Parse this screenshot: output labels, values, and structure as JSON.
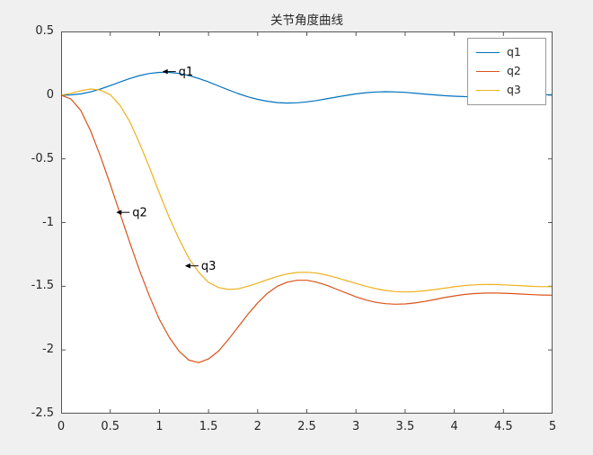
{
  "figure": {
    "background": "#f0f0f0"
  },
  "chart_data": {
    "type": "line",
    "title": "关节角度曲线",
    "xlabel": "",
    "ylabel": "",
    "xlim": [
      0,
      5
    ],
    "ylim": [
      -2.5,
      0.5
    ],
    "xticks": [
      0,
      0.5,
      1,
      1.5,
      2,
      2.5,
      3,
      3.5,
      4,
      4.5,
      5
    ],
    "yticks": [
      0.5,
      0,
      -0.5,
      -1,
      -1.5,
      -2,
      -2.5
    ],
    "grid": false,
    "plot_bg": "#ffffff",
    "axis_color": "#555555",
    "text_color": "#262626",
    "legend": {
      "position": "top-right",
      "entries": [
        "q1",
        "q2",
        "q3"
      ]
    },
    "series": [
      {
        "name": "q1",
        "color": "#0072BD",
        "points": [
          [
            0,
            0
          ],
          [
            0.1,
            0.002
          ],
          [
            0.2,
            0.01
          ],
          [
            0.3,
            0.026
          ],
          [
            0.4,
            0.048
          ],
          [
            0.5,
            0.075
          ],
          [
            0.6,
            0.103
          ],
          [
            0.7,
            0.131
          ],
          [
            0.8,
            0.154
          ],
          [
            0.9,
            0.17
          ],
          [
            1,
            0.179
          ],
          [
            1.1,
            0.179
          ],
          [
            1.2,
            0.17
          ],
          [
            1.3,
            0.154
          ],
          [
            1.4,
            0.131
          ],
          [
            1.5,
            0.104
          ],
          [
            1.6,
            0.073
          ],
          [
            1.7,
            0.042
          ],
          [
            1.8,
            0.013
          ],
          [
            1.9,
            -0.013
          ],
          [
            2,
            -0.033
          ],
          [
            2.1,
            -0.048
          ],
          [
            2.2,
            -0.058
          ],
          [
            2.3,
            -0.062
          ],
          [
            2.4,
            -0.06
          ],
          [
            2.5,
            -0.053
          ],
          [
            2.6,
            -0.042
          ],
          [
            2.7,
            -0.029
          ],
          [
            2.8,
            -0.015
          ],
          [
            2.9,
            -0.002
          ],
          [
            3,
            0.01
          ],
          [
            3.1,
            0.019
          ],
          [
            3.2,
            0.025
          ],
          [
            3.3,
            0.027
          ],
          [
            3.4,
            0.026
          ],
          [
            3.5,
            0.022
          ],
          [
            3.6,
            0.016
          ],
          [
            3.7,
            0.009
          ],
          [
            3.8,
            0.002
          ],
          [
            3.9,
            -0.004
          ],
          [
            4,
            -0.008
          ],
          [
            4.1,
            -0.011
          ],
          [
            4.2,
            -0.012
          ],
          [
            4.3,
            -0.011
          ],
          [
            4.4,
            -0.008
          ],
          [
            4.5,
            -0.005
          ],
          [
            4.6,
            -0.002
          ],
          [
            4.7,
            0.001
          ],
          [
            4.8,
            0.003
          ],
          [
            4.9,
            0.004
          ],
          [
            5,
            0.003
          ]
        ]
      },
      {
        "name": "q2",
        "color": "#D95319",
        "points": [
          [
            0,
            0
          ],
          [
            0.1,
            -0.03
          ],
          [
            0.2,
            -0.12
          ],
          [
            0.3,
            -0.28
          ],
          [
            0.4,
            -0.48
          ],
          [
            0.5,
            -0.7
          ],
          [
            0.6,
            -0.93
          ],
          [
            0.7,
            -1.16
          ],
          [
            0.8,
            -1.38
          ],
          [
            0.9,
            -1.58
          ],
          [
            1,
            -1.76
          ],
          [
            1.1,
            -1.9
          ],
          [
            1.2,
            -2.01
          ],
          [
            1.3,
            -2.08
          ],
          [
            1.4,
            -2.1
          ],
          [
            1.5,
            -2.07
          ],
          [
            1.6,
            -2.01
          ],
          [
            1.7,
            -1.92
          ],
          [
            1.8,
            -1.82
          ],
          [
            1.9,
            -1.72
          ],
          [
            2,
            -1.63
          ],
          [
            2.1,
            -1.555
          ],
          [
            2.2,
            -1.5
          ],
          [
            2.3,
            -1.468
          ],
          [
            2.4,
            -1.453
          ],
          [
            2.5,
            -1.453
          ],
          [
            2.6,
            -1.468
          ],
          [
            2.7,
            -1.492
          ],
          [
            2.8,
            -1.522
          ],
          [
            2.9,
            -1.553
          ],
          [
            3,
            -1.583
          ],
          [
            3.1,
            -1.608
          ],
          [
            3.2,
            -1.626
          ],
          [
            3.3,
            -1.637
          ],
          [
            3.4,
            -1.641
          ],
          [
            3.5,
            -1.639
          ],
          [
            3.6,
            -1.631
          ],
          [
            3.7,
            -1.619
          ],
          [
            3.8,
            -1.604
          ],
          [
            3.9,
            -1.589
          ],
          [
            4,
            -1.576
          ],
          [
            4.1,
            -1.565
          ],
          [
            4.2,
            -1.558
          ],
          [
            4.3,
            -1.554
          ],
          [
            4.4,
            -1.553
          ],
          [
            4.5,
            -1.555
          ],
          [
            4.6,
            -1.558
          ],
          [
            4.7,
            -1.562
          ],
          [
            4.8,
            -1.566
          ],
          [
            4.9,
            -1.569
          ],
          [
            5,
            -1.57
          ]
        ]
      },
      {
        "name": "q3",
        "color": "#EDB120",
        "points": [
          [
            0,
            0
          ],
          [
            0.1,
            0.015
          ],
          [
            0.2,
            0.035
          ],
          [
            0.3,
            0.048
          ],
          [
            0.4,
            0.04
          ],
          [
            0.5,
            0.003
          ],
          [
            0.6,
            -0.08
          ],
          [
            0.7,
            -0.21
          ],
          [
            0.8,
            -0.38
          ],
          [
            0.9,
            -0.57
          ],
          [
            1,
            -0.77
          ],
          [
            1.1,
            -0.96
          ],
          [
            1.2,
            -1.13
          ],
          [
            1.3,
            -1.28
          ],
          [
            1.4,
            -1.39
          ],
          [
            1.5,
            -1.47
          ],
          [
            1.6,
            -1.51
          ],
          [
            1.7,
            -1.525
          ],
          [
            1.8,
            -1.52
          ],
          [
            1.9,
            -1.5
          ],
          [
            2,
            -1.475
          ],
          [
            2.1,
            -1.448
          ],
          [
            2.2,
            -1.423
          ],
          [
            2.3,
            -1.403
          ],
          [
            2.4,
            -1.392
          ],
          [
            2.5,
            -1.39
          ],
          [
            2.6,
            -1.397
          ],
          [
            2.7,
            -1.412
          ],
          [
            2.8,
            -1.432
          ],
          [
            2.9,
            -1.455
          ],
          [
            3,
            -1.478
          ],
          [
            3.1,
            -1.5
          ],
          [
            3.2,
            -1.519
          ],
          [
            3.3,
            -1.533
          ],
          [
            3.4,
            -1.542
          ],
          [
            3.5,
            -1.545
          ],
          [
            3.6,
            -1.543
          ],
          [
            3.7,
            -1.536
          ],
          [
            3.8,
            -1.526
          ],
          [
            3.9,
            -1.515
          ],
          [
            4,
            -1.504
          ],
          [
            4.1,
            -1.495
          ],
          [
            4.2,
            -1.489
          ],
          [
            4.3,
            -1.486
          ],
          [
            4.4,
            -1.486
          ],
          [
            4.5,
            -1.489
          ],
          [
            4.6,
            -1.493
          ],
          [
            4.7,
            -1.497
          ],
          [
            4.8,
            -1.501
          ],
          [
            4.9,
            -1.503
          ],
          [
            5,
            -1.503
          ]
        ]
      }
    ],
    "annotations": [
      {
        "x": 1.03,
        "y": 0.185,
        "label": "q1"
      },
      {
        "x": 0.56,
        "y": -0.92,
        "label": "q2"
      },
      {
        "x": 1.26,
        "y": -1.34,
        "label": "q3"
      }
    ]
  }
}
